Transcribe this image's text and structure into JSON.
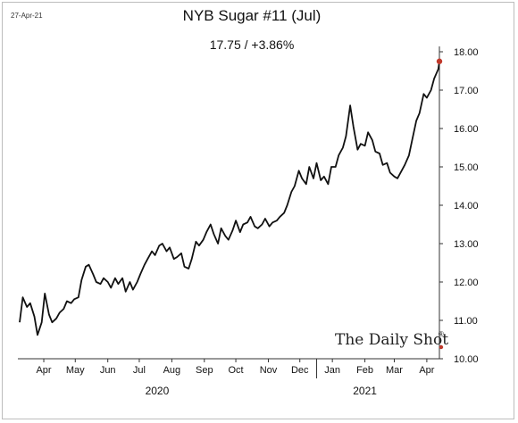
{
  "header": {
    "date": "27-Apr-21",
    "title": "NYB Sugar #11 (Jul)",
    "subtitle": "17.75  /  +3.86%"
  },
  "watermark": {
    "text": "The Daily Shot",
    "mark": "®"
  },
  "colors": {
    "line": "#111111",
    "marker": "#c0392b",
    "grid": "#cccccc"
  },
  "chart_data": {
    "type": "line",
    "xlabel": "",
    "ylabel": "",
    "ylim": [
      10.0,
      18.0
    ],
    "y_ticks": [
      "10.00",
      "11.00",
      "12.00",
      "13.00",
      "14.00",
      "15.00",
      "16.00",
      "17.00",
      "18.00"
    ],
    "x_range": [
      "2020-03-23",
      "2021-04-27"
    ],
    "x_ticks": [
      {
        "date": "2020-04-15",
        "label": "Apr"
      },
      {
        "date": "2020-05-15",
        "label": "May"
      },
      {
        "date": "2020-06-15",
        "label": "Jun"
      },
      {
        "date": "2020-07-15",
        "label": "Jul"
      },
      {
        "date": "2020-08-15",
        "label": "Aug"
      },
      {
        "date": "2020-09-15",
        "label": "Sep"
      },
      {
        "date": "2020-10-15",
        "label": "Oct"
      },
      {
        "date": "2020-11-15",
        "label": "Nov"
      },
      {
        "date": "2020-12-15",
        "label": "Dec"
      },
      {
        "date": "2021-01-15",
        "label": "Jan"
      },
      {
        "date": "2021-02-15",
        "label": "Feb"
      },
      {
        "date": "2021-03-15",
        "label": "Mar"
      },
      {
        "date": "2021-04-15",
        "label": "Apr"
      }
    ],
    "year_labels": [
      {
        "date": "2020-08-01",
        "label": "2020"
      },
      {
        "date": "2021-02-15",
        "label": "2021"
      }
    ],
    "year_divider": "2020-12-31",
    "last_point": {
      "x": "2021-04-27",
      "y": 17.75
    },
    "series": [
      {
        "x": [
          "2020-03-23",
          "2020-03-26",
          "2020-03-30",
          "2020-04-02",
          "2020-04-06",
          "2020-04-09",
          "2020-04-13",
          "2020-04-16",
          "2020-04-20",
          "2020-04-23",
          "2020-04-27",
          "2020-04-30",
          "2020-05-04",
          "2020-05-07",
          "2020-05-11",
          "2020-05-14",
          "2020-05-18",
          "2020-05-21",
          "2020-05-25",
          "2020-05-28",
          "2020-06-01",
          "2020-06-04",
          "2020-06-08",
          "2020-06-11",
          "2020-06-15",
          "2020-06-18",
          "2020-06-22",
          "2020-06-25",
          "2020-06-29",
          "2020-07-02",
          "2020-07-06",
          "2020-07-09",
          "2020-07-13",
          "2020-07-16",
          "2020-07-20",
          "2020-07-23",
          "2020-07-27",
          "2020-07-30",
          "2020-08-03",
          "2020-08-06",
          "2020-08-10",
          "2020-08-13",
          "2020-08-17",
          "2020-08-20",
          "2020-08-24",
          "2020-08-27",
          "2020-08-31",
          "2020-09-03",
          "2020-09-07",
          "2020-09-10",
          "2020-09-14",
          "2020-09-17",
          "2020-09-21",
          "2020-09-24",
          "2020-09-28",
          "2020-10-01",
          "2020-10-05",
          "2020-10-08",
          "2020-10-12",
          "2020-10-15",
          "2020-10-19",
          "2020-10-22",
          "2020-10-26",
          "2020-10-29",
          "2020-11-02",
          "2020-11-05",
          "2020-11-09",
          "2020-11-12",
          "2020-11-16",
          "2020-11-19",
          "2020-11-23",
          "2020-11-26",
          "2020-11-30",
          "2020-12-03",
          "2020-12-07",
          "2020-12-10",
          "2020-12-14",
          "2020-12-17",
          "2020-12-21",
          "2020-12-24",
          "2020-12-28",
          "2020-12-31",
          "2021-01-04",
          "2021-01-07",
          "2021-01-11",
          "2021-01-14",
          "2021-01-18",
          "2021-01-21",
          "2021-01-25",
          "2021-01-28",
          "2021-02-01",
          "2021-02-04",
          "2021-02-08",
          "2021-02-11",
          "2021-02-15",
          "2021-02-18",
          "2021-02-22",
          "2021-02-25",
          "2021-03-01",
          "2021-03-04",
          "2021-03-08",
          "2021-03-11",
          "2021-03-15",
          "2021-03-18",
          "2021-03-22",
          "2021-03-25",
          "2021-03-29",
          "2021-04-01",
          "2021-04-05",
          "2021-04-08",
          "2021-04-12",
          "2021-04-15",
          "2021-04-19",
          "2021-04-22",
          "2021-04-26",
          "2021-04-27"
        ],
        "values": [
          10.95,
          11.6,
          11.35,
          11.45,
          11.1,
          10.62,
          10.95,
          11.7,
          11.15,
          10.95,
          11.05,
          11.2,
          11.3,
          11.5,
          11.45,
          11.55,
          11.6,
          12.05,
          12.4,
          12.45,
          12.2,
          12.0,
          11.95,
          12.1,
          12.0,
          11.85,
          12.1,
          11.95,
          12.1,
          11.75,
          12.0,
          11.8,
          12.0,
          12.2,
          12.45,
          12.6,
          12.8,
          12.7,
          12.95,
          13.0,
          12.8,
          12.9,
          12.6,
          12.65,
          12.75,
          12.4,
          12.35,
          12.6,
          13.05,
          12.95,
          13.1,
          13.3,
          13.5,
          13.25,
          13.0,
          13.4,
          13.2,
          13.1,
          13.35,
          13.6,
          13.3,
          13.5,
          13.55,
          13.7,
          13.45,
          13.4,
          13.5,
          13.65,
          13.45,
          13.55,
          13.6,
          13.7,
          13.8,
          14.0,
          14.35,
          14.5,
          14.9,
          14.7,
          14.55,
          15.0,
          14.7,
          15.1,
          14.65,
          14.75,
          14.55,
          15.0,
          15.0,
          15.3,
          15.5,
          15.8,
          16.6,
          16.05,
          15.45,
          15.6,
          15.55,
          15.9,
          15.7,
          15.4,
          15.35,
          15.05,
          15.1,
          14.85,
          14.75,
          14.7,
          14.9,
          15.05,
          15.3,
          15.7,
          16.2,
          16.4,
          16.9,
          16.8,
          17.0,
          17.3,
          17.55,
          17.75
        ]
      }
    ]
  }
}
